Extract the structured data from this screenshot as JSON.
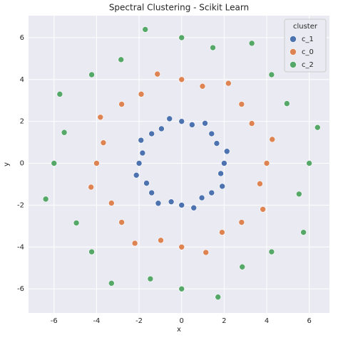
{
  "chart_data": {
    "type": "scatter",
    "title": "Spectral Clustering - Scikit Learn",
    "x_label": "x",
    "y_label": "y",
    "legend_title": "cluster",
    "legend": "upper right",
    "grid": true,
    "xlim": [
      -7.2,
      6.95
    ],
    "ylim": [
      -7.15,
      7.05
    ],
    "xticks": [
      -6,
      -4,
      -2,
      0,
      2,
      4,
      6
    ],
    "yticks": [
      -6,
      -4,
      -2,
      0,
      2,
      4,
      6
    ],
    "series": [
      {
        "name": "c_1",
        "color": "#4c72b0",
        "x": [
          2.0,
          2.13,
          1.65,
          1.41,
          1.1,
          0.49,
          0,
          -0.57,
          -0.95,
          -1.41,
          -1.91,
          -1.84,
          -2.0,
          -2.13,
          -1.65,
          -1.41,
          -1.1,
          -0.49,
          0,
          0.57,
          0.95,
          1.41,
          1.91,
          1.84
        ],
        "values": [
          0,
          0.57,
          0.95,
          1.41,
          1.91,
          1.84,
          2.0,
          2.13,
          1.65,
          1.41,
          1.1,
          0.49,
          0,
          -0.57,
          -0.95,
          -1.41,
          -1.91,
          -1.84,
          -2.0,
          -2.13,
          -1.65,
          -1.41,
          -1.1,
          -0.49
        ]
      },
      {
        "name": "c_0",
        "color": "#dd8452",
        "x": [
          4.0,
          4.26,
          3.3,
          2.82,
          2.2,
          0.98,
          0,
          -1.14,
          -1.9,
          -2.82,
          -3.82,
          -3.68,
          -4.0,
          -4.26,
          -3.3,
          -2.82,
          -2.2,
          -0.98,
          0,
          1.14,
          1.9,
          2.82,
          3.82,
          3.68
        ],
        "values": [
          0,
          1.14,
          1.9,
          2.82,
          3.82,
          3.68,
          4.0,
          4.26,
          3.3,
          2.82,
          2.2,
          0.98,
          0,
          -1.14,
          -1.9,
          -2.82,
          -3.82,
          -3.68,
          -4.0,
          -4.26,
          -3.3,
          -2.82,
          -2.2,
          -0.98
        ]
      },
      {
        "name": "c_2",
        "color": "#55a868",
        "x": [
          6.0,
          6.39,
          4.95,
          4.23,
          3.3,
          1.47,
          0,
          -1.71,
          -2.85,
          -4.23,
          -5.73,
          -5.52,
          -6.0,
          -6.39,
          -4.95,
          -4.23,
          -3.3,
          -1.47,
          0,
          1.71,
          2.85,
          4.23,
          5.73,
          5.52
        ],
        "values": [
          0,
          1.71,
          2.85,
          4.23,
          5.73,
          5.52,
          6.0,
          6.39,
          4.95,
          4.23,
          3.3,
          1.47,
          0,
          -1.71,
          -2.85,
          -4.23,
          -5.73,
          -5.52,
          -6.0,
          -6.39,
          -4.95,
          -4.23,
          -3.3,
          -1.47
        ]
      }
    ]
  }
}
